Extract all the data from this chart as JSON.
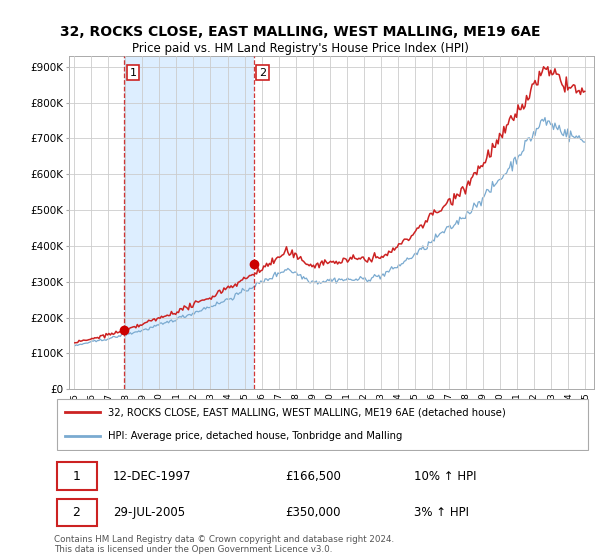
{
  "title": "32, ROCKS CLOSE, EAST MALLING, WEST MALLING, ME19 6AE",
  "subtitle": "Price paid vs. HM Land Registry's House Price Index (HPI)",
  "ylim": [
    0,
    930000
  ],
  "yticks": [
    0,
    100000,
    200000,
    300000,
    400000,
    500000,
    600000,
    700000,
    800000,
    900000
  ],
  "ytick_labels": [
    "£0",
    "£100K",
    "£200K",
    "£300K",
    "£400K",
    "£500K",
    "£600K",
    "£700K",
    "£800K",
    "£900K"
  ],
  "hpi_color": "#7aaad0",
  "price_color": "#cc2222",
  "dot_color": "#cc0000",
  "annotation_color": "#cc2222",
  "shade_color": "#ddeeff",
  "background_color": "#ffffff",
  "grid_color": "#cccccc",
  "legend_label_price": "32, ROCKS CLOSE, EAST MALLING, WEST MALLING, ME19 6AE (detached house)",
  "legend_label_hpi": "HPI: Average price, detached house, Tonbridge and Malling",
  "purchase1_date": "12-DEC-1997",
  "purchase1_price": 166500,
  "purchase1_label": "1",
  "purchase1_hpi_pct": "10% ↑ HPI",
  "purchase2_date": "29-JUL-2005",
  "purchase2_price": 350000,
  "purchase2_label": "2",
  "purchase2_hpi_pct": "3% ↑ HPI",
  "footer": "Contains HM Land Registry data © Crown copyright and database right 2024.\nThis data is licensed under the Open Government Licence v3.0.",
  "xlim_min": 1994.7,
  "xlim_max": 2025.5,
  "p1_x": 1997.95,
  "p2_x": 2005.54,
  "title_fontsize": 10,
  "subtitle_fontsize": 8.5
}
